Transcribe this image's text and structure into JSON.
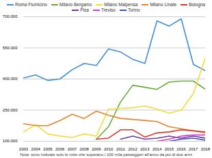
{
  "chart_data": {
    "type": "line",
    "x": [
      2003,
      2004,
      2005,
      2006,
      2007,
      2008,
      2009,
      2010,
      2011,
      2012,
      2013,
      2014,
      2015,
      2016,
      2017,
      2018
    ],
    "xlim": [
      2003,
      2018
    ],
    "xticks": [
      2003,
      2004,
      2005,
      2006,
      2007,
      2008,
      2009,
      2010,
      2011,
      2012,
      2013,
      2014,
      2015,
      2016,
      2017,
      2018
    ],
    "ylim": [
      100000,
      700000
    ],
    "yticks": [
      {
        "value": 100000,
        "label": "100.000"
      },
      {
        "value": 250000,
        "label": "250.000"
      },
      {
        "value": 400000,
        "label": "400.000"
      },
      {
        "value": 550000,
        "label": "550.000"
      },
      {
        "value": 700000,
        "label": "700.000"
      }
    ],
    "grid": true,
    "legend": "top",
    "annotations": [
      "Nota: sono indicate solo le rotte che superano i 100 mila passeggeri all'anno da più di due anni"
    ],
    "series": [
      {
        "name": "Roma Fiumicino",
        "color": "#3d8fd6",
        "values": [
          405000,
          420000,
          393000,
          400000,
          445000,
          475000,
          465000,
          545000,
          530000,
          495000,
          475000,
          680000,
          655000,
          690000,
          470000,
          440000
        ]
      },
      {
        "name": "Milano Bergamo",
        "color": "#6aa838",
        "values": [
          null,
          null,
          null,
          null,
          null,
          null,
          110000,
          170000,
          290000,
          370000,
          360000,
          350000,
          385000,
          390000,
          390000,
          350000
        ]
      },
      {
        "name": "Milano Malpensa",
        "color": "#f2dc3a",
        "values": [
          145000,
          180000,
          135000,
          125000,
          118000,
          135000,
          125000,
          255000,
          258000,
          262000,
          270000,
          255000,
          235000,
          250000,
          330000,
          505000
        ]
      },
      {
        "name": "Milano Linate",
        "color": "#e8832a",
        "values": [
          185000,
          175000,
          175000,
          200000,
          230000,
          210000,
          245000,
          225000,
          210000,
          205000,
          200000,
          195000,
          170000,
          160000,
          150000,
          140000
        ]
      },
      {
        "name": "Bologna",
        "color": "#d33a2c",
        "values": [
          null,
          null,
          null,
          null,
          null,
          null,
          110000,
          115000,
          155000,
          155000,
          120000,
          140000,
          145000,
          155000,
          150000,
          145000
        ]
      },
      {
        "name": "Pisa",
        "color": "#6a3d9a",
        "values": [
          null,
          null,
          null,
          null,
          null,
          null,
          null,
          null,
          110000,
          125000,
          110000,
          115000,
          125000,
          115000,
          125000,
          115000
        ]
      },
      {
        "name": "Treviso",
        "color": "#d63cc8",
        "values": [
          null,
          null,
          null,
          null,
          null,
          null,
          null,
          null,
          null,
          null,
          null,
          100000,
          110000,
          125000,
          130000,
          130000
        ]
      },
      {
        "name": "Torino",
        "color": "#3f4fc5",
        "values": [
          null,
          null,
          null,
          null,
          null,
          null,
          null,
          null,
          null,
          null,
          null,
          null,
          100000,
          110000,
          115000,
          105000
        ]
      }
    ]
  }
}
